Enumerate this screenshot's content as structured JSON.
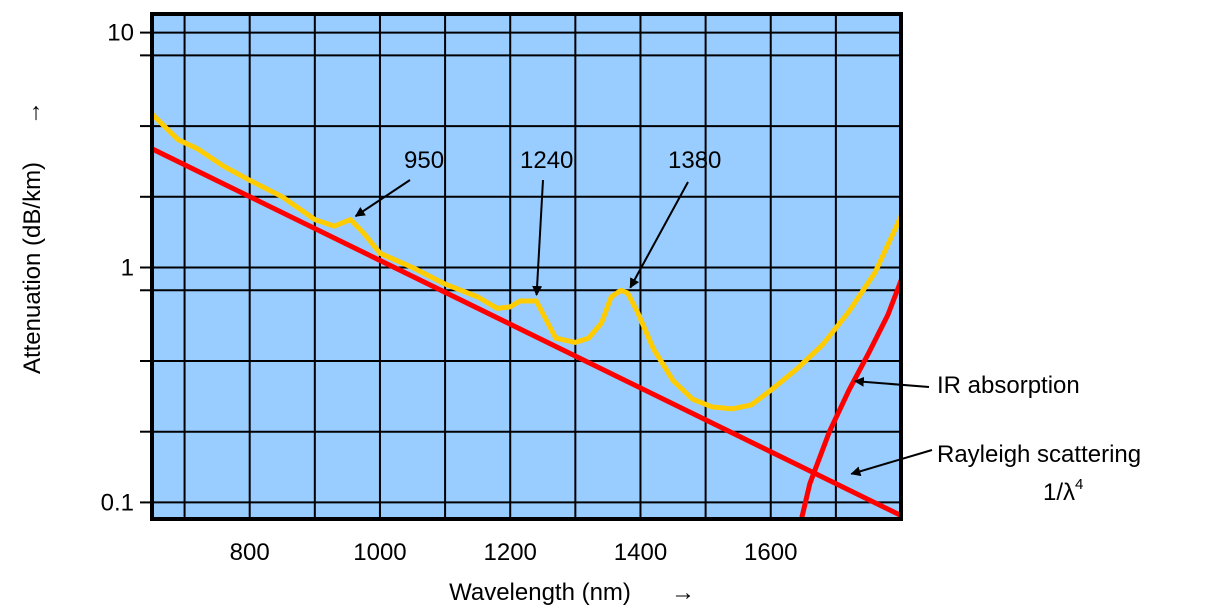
{
  "colors": {
    "plot_background": "#99ccff",
    "grid": "#000000",
    "measured_attenuation": "#ffcc00",
    "rayleigh_scattering": "#ff0000",
    "ir_absorption": "#ff0000",
    "text": "#000000"
  },
  "chart_data": {
    "type": "line",
    "title": "",
    "xlabel": "Wavelength (nm)",
    "ylabel": "Attenuation (dB/km)",
    "x_arrow": "→",
    "y_arrow": "→",
    "xlim": [
      650,
      1800
    ],
    "ylim": [
      0.085,
      12
    ],
    "y_scale": "log",
    "grid": true,
    "x_ticks": [
      800,
      1000,
      1200,
      1400,
      1600
    ],
    "x_tick_labels": [
      "800",
      "1000",
      "1200",
      "1400",
      "1600"
    ],
    "y_ticks": [
      0.1,
      1,
      10
    ],
    "y_tick_labels": [
      "0.1",
      "1",
      "10"
    ],
    "series": [
      {
        "name": "",
        "color": "#ffcc00",
        "points": [
          [
            650,
            4.5
          ],
          [
            690,
            3.5
          ],
          [
            720,
            3.2
          ],
          [
            760,
            2.7
          ],
          [
            800,
            2.35
          ],
          [
            850,
            2.0
          ],
          [
            900,
            1.6
          ],
          [
            930,
            1.5
          ],
          [
            955,
            1.6
          ],
          [
            975,
            1.4
          ],
          [
            1000,
            1.15
          ],
          [
            1050,
            1.0
          ],
          [
            1100,
            0.85
          ],
          [
            1150,
            0.75
          ],
          [
            1180,
            0.67
          ],
          [
            1200,
            0.68
          ],
          [
            1215,
            0.72
          ],
          [
            1240,
            0.72
          ],
          [
            1255,
            0.6
          ],
          [
            1270,
            0.5
          ],
          [
            1300,
            0.48
          ],
          [
            1320,
            0.5
          ],
          [
            1340,
            0.58
          ],
          [
            1355,
            0.75
          ],
          [
            1370,
            0.8
          ],
          [
            1380,
            0.78
          ],
          [
            1395,
            0.65
          ],
          [
            1420,
            0.45
          ],
          [
            1450,
            0.33
          ],
          [
            1480,
            0.275
          ],
          [
            1510,
            0.255
          ],
          [
            1540,
            0.25
          ],
          [
            1570,
            0.26
          ],
          [
            1600,
            0.3
          ],
          [
            1640,
            0.37
          ],
          [
            1680,
            0.47
          ],
          [
            1720,
            0.65
          ],
          [
            1760,
            0.95
          ],
          [
            1800,
            1.65
          ]
        ]
      },
      {
        "name": "",
        "color": "#ff0000",
        "points": [
          [
            650,
            3.2
          ],
          [
            1800,
            0.088
          ]
        ]
      },
      {
        "name": "",
        "color": "#ff0000",
        "points": [
          [
            1640,
            0.07
          ],
          [
            1660,
            0.12
          ],
          [
            1690,
            0.2
          ],
          [
            1720,
            0.3
          ],
          [
            1750,
            0.43
          ],
          [
            1780,
            0.63
          ],
          [
            1800,
            0.88
          ]
        ]
      }
    ],
    "annotations": [
      {
        "text": "950",
        "target": [
          955,
          1.6
        ]
      },
      {
        "text": "1240",
        "target": [
          1240,
          0.72
        ]
      },
      {
        "text": "1380",
        "target": [
          1380,
          0.78
        ]
      },
      {
        "text": "IR absorption",
        "target": [
          1720,
          0.33
        ]
      },
      {
        "text": "Rayleigh scattering",
        "target": [
          1715,
          0.13
        ]
      },
      {
        "text": "1/λ",
        "sup": "4"
      }
    ]
  }
}
